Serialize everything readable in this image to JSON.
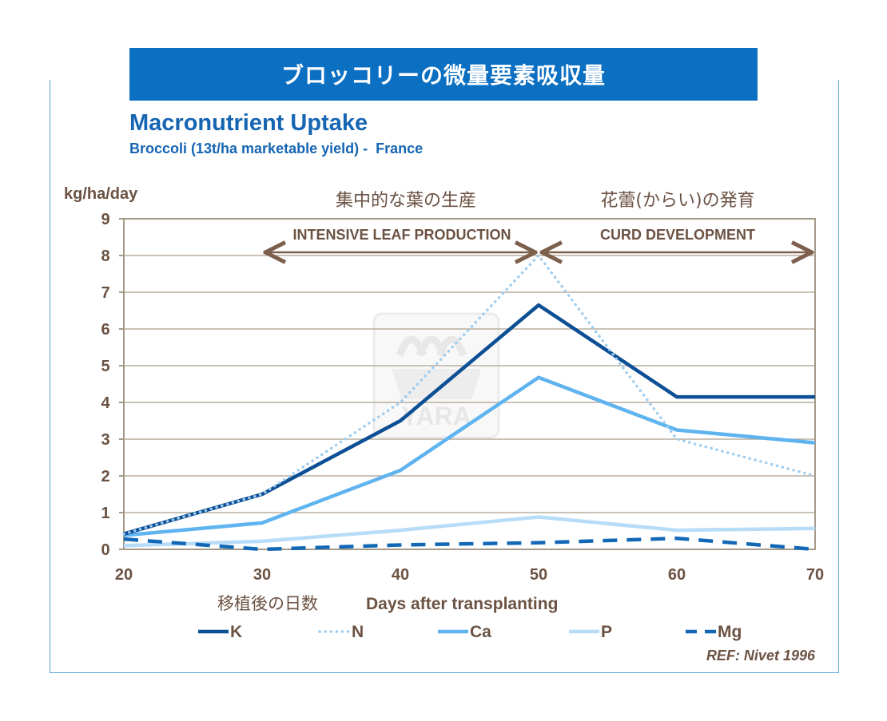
{
  "banner": "ブロッコリーの微量要素吸収量",
  "title": "Macronutrient Uptake",
  "subtitle": "Broccoli (13t/ha marketable yield) -  France",
  "yunit": "kg/ha/day",
  "phases": [
    {
      "jp": "集中的な葉の生産",
      "en": "INTENSIVE LEAF PRODUCTION",
      "x_from": 30,
      "x_to": 50
    },
    {
      "jp": "花蕾(からい)の発育",
      "en": "CURD DEVELOPMENT",
      "x_from": 50,
      "x_to": 70
    }
  ],
  "xlabel_jp": "移植後の日数",
  "xlabel_en": "Days after transplanting",
  "watermark": "YARA",
  "reference": "REF: Nivet  1996",
  "colors": {
    "K": "#0d4f94",
    "N": "#9dcdf0",
    "Ca": "#5fb4ef",
    "P": "#b6dcf8",
    "Mg": "#1268b5"
  },
  "chart_data": {
    "type": "line",
    "x": [
      20,
      30,
      40,
      50,
      60,
      70
    ],
    "xlim": [
      20,
      70
    ],
    "ylim": [
      0,
      9
    ],
    "xticks": [
      "20",
      "30",
      "40",
      "50",
      "60",
      "70"
    ],
    "yticks": [
      "0",
      "1",
      "2",
      "3",
      "4",
      "5",
      "6",
      "7",
      "8",
      "9"
    ],
    "ylabel": "kg/ha/day",
    "xlabel": "移植後の日数   Days after transplanting",
    "grid": "horizontal",
    "legend": "bottom",
    "series": [
      {
        "name": "K",
        "style": "solid",
        "values": [
          0.42,
          1.5,
          3.5,
          6.65,
          4.15,
          4.15
        ]
      },
      {
        "name": "N",
        "style": "dotted",
        "values": [
          0.42,
          1.5,
          4.0,
          8.0,
          3.0,
          2.0
        ]
      },
      {
        "name": "Ca",
        "style": "solid",
        "values": [
          0.38,
          0.72,
          2.15,
          4.68,
          3.25,
          2.9
        ]
      },
      {
        "name": "P",
        "style": "solid",
        "values": [
          0.1,
          0.22,
          0.52,
          0.88,
          0.52,
          0.57
        ]
      },
      {
        "name": "Mg",
        "style": "dashed",
        "values": [
          0.28,
          0.0,
          0.12,
          0.18,
          0.3,
          0.0
        ]
      }
    ]
  }
}
